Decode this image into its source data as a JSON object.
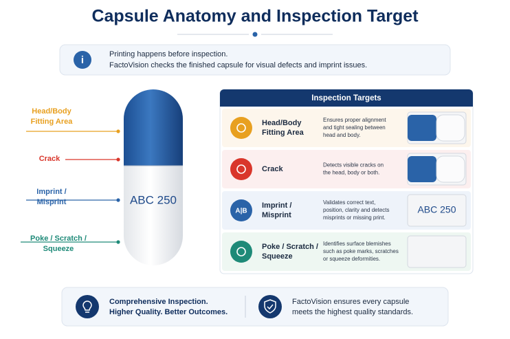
{
  "title": "Capsule Anatomy and Inspection Target",
  "info": {
    "lines": [
      "Printing happens before inspection.",
      "FactoVision checks the finished capsule for visual defects and imprint issues."
    ]
  },
  "capsule": {
    "imprint": "ABC 250",
    "labels": [
      {
        "lines": [
          "Head/Body",
          "Fitting Area"
        ]
      },
      {
        "lines": [
          "Crack"
        ]
      },
      {
        "lines": [
          "Imprint /",
          "Misprint"
        ]
      },
      {
        "lines": [
          "Poke / Scratch /",
          "Squeeze"
        ]
      }
    ]
  },
  "targets": {
    "header": "Inspection Targets",
    "rows": [
      {
        "name": [
          "Head/Body",
          "Fitting Area"
        ],
        "description": [
          "Ensures proper alignment",
          "and tight sealing between",
          "head and body."
        ]
      },
      {
        "name": [
          "Crack"
        ],
        "description": [
          "Detects visible cracks on",
          "the head, body or both."
        ]
      },
      {
        "name": [
          "Imprint /",
          "Misprint"
        ],
        "icon_text": "A|B",
        "description": [
          "Validates correct text,",
          "position, clarity and detects",
          "misprints or missing print."
        ],
        "image_text": "ABC 250"
      },
      {
        "name": [
          "Poke / Scratch /",
          "Squeeze"
        ],
        "description": [
          "Identifies surface blemishes",
          "such as poke marks, scratches",
          "or squeeze deformities."
        ]
      }
    ]
  },
  "footer": {
    "left": [
      "Comprehensive Inspection.",
      "Higher Quality. Better Outcomes."
    ],
    "right": [
      "FactoVision ensures every capsule",
      "meets the highest quality standards."
    ]
  }
}
